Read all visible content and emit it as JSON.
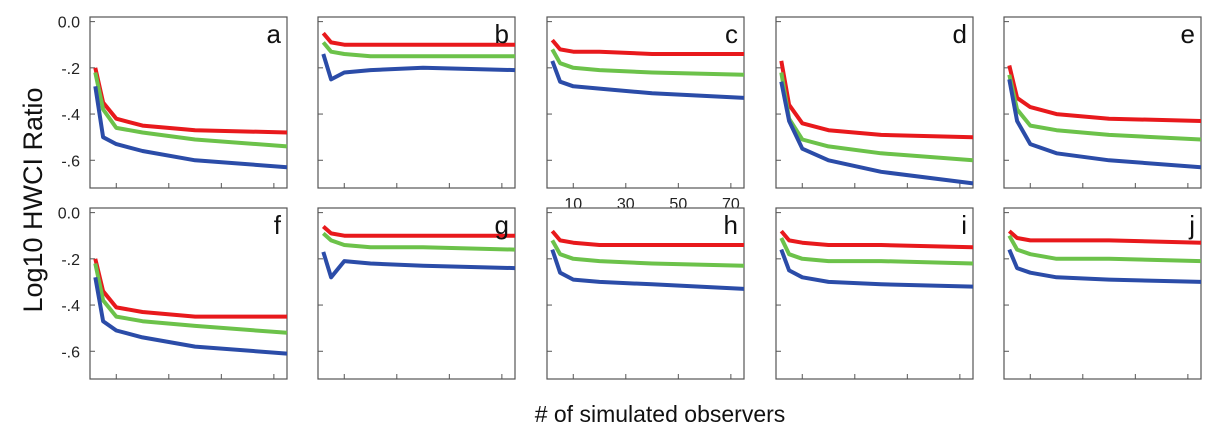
{
  "figure": {
    "ylabel": "Log10  HWCI Ratio",
    "xlabel": "# of simulated observers"
  },
  "colors": {
    "red": "#e8191c",
    "green": "#6cc24a",
    "blue": "#2b4ca8"
  },
  "chart_data": {
    "type": "line",
    "xlim": [
      0,
      75
    ],
    "ylim": [
      -0.72,
      0.02
    ],
    "yticks": [
      0.0,
      -0.2,
      -0.4,
      -0.6
    ],
    "ytick_labels": [
      "0.0",
      "-.2",
      "-.4",
      "-.6"
    ],
    "xticks": [
      10,
      30,
      50,
      70
    ],
    "xtick_labels": [
      "10",
      "30",
      "50",
      "70"
    ],
    "xtick_panel": "c",
    "x": [
      2,
      5,
      10,
      20,
      40,
      75
    ],
    "series_colors": [
      "red",
      "green",
      "blue"
    ],
    "panels": [
      {
        "letter": "a",
        "series": [
          {
            "values": [
              -0.2,
              -0.35,
              -0.42,
              -0.45,
              -0.47,
              -0.48
            ]
          },
          {
            "values": [
              -0.22,
              -0.38,
              -0.46,
              -0.48,
              -0.51,
              -0.54
            ]
          },
          {
            "values": [
              -0.28,
              -0.5,
              -0.53,
              -0.56,
              -0.6,
              -0.63
            ]
          }
        ]
      },
      {
        "letter": "b",
        "series": [
          {
            "values": [
              -0.05,
              -0.09,
              -0.1,
              -0.1,
              -0.1,
              -0.1
            ]
          },
          {
            "values": [
              -0.09,
              -0.13,
              -0.14,
              -0.15,
              -0.15,
              -0.15
            ]
          },
          {
            "values": [
              -0.14,
              -0.25,
              -0.22,
              -0.21,
              -0.2,
              -0.21
            ]
          }
        ]
      },
      {
        "letter": "c",
        "series": [
          {
            "values": [
              -0.08,
              -0.12,
              -0.13,
              -0.13,
              -0.14,
              -0.14
            ]
          },
          {
            "values": [
              -0.12,
              -0.18,
              -0.2,
              -0.21,
              -0.22,
              -0.23
            ]
          },
          {
            "values": [
              -0.17,
              -0.26,
              -0.28,
              -0.29,
              -0.31,
              -0.33
            ]
          }
        ]
      },
      {
        "letter": "d",
        "series": [
          {
            "values": [
              -0.17,
              -0.36,
              -0.44,
              -0.47,
              -0.49,
              -0.5
            ]
          },
          {
            "values": [
              -0.22,
              -0.42,
              -0.51,
              -0.54,
              -0.57,
              -0.6
            ]
          },
          {
            "values": [
              -0.26,
              -0.43,
              -0.55,
              -0.6,
              -0.65,
              -0.7
            ]
          }
        ]
      },
      {
        "letter": "e",
        "series": [
          {
            "values": [
              -0.19,
              -0.33,
              -0.37,
              -0.4,
              -0.42,
              -0.43
            ]
          },
          {
            "values": [
              -0.23,
              -0.38,
              -0.45,
              -0.47,
              -0.49,
              -0.51
            ]
          },
          {
            "values": [
              -0.25,
              -0.43,
              -0.53,
              -0.57,
              -0.6,
              -0.63
            ]
          }
        ]
      },
      {
        "letter": "f",
        "series": [
          {
            "values": [
              -0.2,
              -0.34,
              -0.41,
              -0.43,
              -0.45,
              -0.45
            ]
          },
          {
            "values": [
              -0.22,
              -0.38,
              -0.45,
              -0.47,
              -0.49,
              -0.52
            ]
          },
          {
            "values": [
              -0.28,
              -0.47,
              -0.51,
              -0.54,
              -0.58,
              -0.61
            ]
          }
        ]
      },
      {
        "letter": "g",
        "series": [
          {
            "values": [
              -0.06,
              -0.09,
              -0.1,
              -0.1,
              -0.1,
              -0.1
            ]
          },
          {
            "values": [
              -0.09,
              -0.12,
              -0.14,
              -0.15,
              -0.15,
              -0.16
            ]
          },
          {
            "values": [
              -0.17,
              -0.28,
              -0.21,
              -0.22,
              -0.23,
              -0.24
            ]
          }
        ]
      },
      {
        "letter": "h",
        "series": [
          {
            "values": [
              -0.08,
              -0.12,
              -0.13,
              -0.14,
              -0.14,
              -0.14
            ]
          },
          {
            "values": [
              -0.12,
              -0.18,
              -0.2,
              -0.21,
              -0.22,
              -0.23
            ]
          },
          {
            "values": [
              -0.16,
              -0.26,
              -0.29,
              -0.3,
              -0.31,
              -0.33
            ]
          }
        ]
      },
      {
        "letter": "i",
        "series": [
          {
            "values": [
              -0.08,
              -0.12,
              -0.13,
              -0.14,
              -0.14,
              -0.15
            ]
          },
          {
            "values": [
              -0.11,
              -0.18,
              -0.2,
              -0.21,
              -0.21,
              -0.22
            ]
          },
          {
            "values": [
              -0.16,
              -0.25,
              -0.28,
              -0.3,
              -0.31,
              -0.32
            ]
          }
        ]
      },
      {
        "letter": "j",
        "series": [
          {
            "values": [
              -0.08,
              -0.11,
              -0.12,
              -0.12,
              -0.12,
              -0.13
            ]
          },
          {
            "values": [
              -0.1,
              -0.16,
              -0.18,
              -0.2,
              -0.2,
              -0.21
            ]
          },
          {
            "values": [
              -0.16,
              -0.24,
              -0.26,
              -0.28,
              -0.29,
              -0.3
            ]
          }
        ]
      }
    ]
  }
}
